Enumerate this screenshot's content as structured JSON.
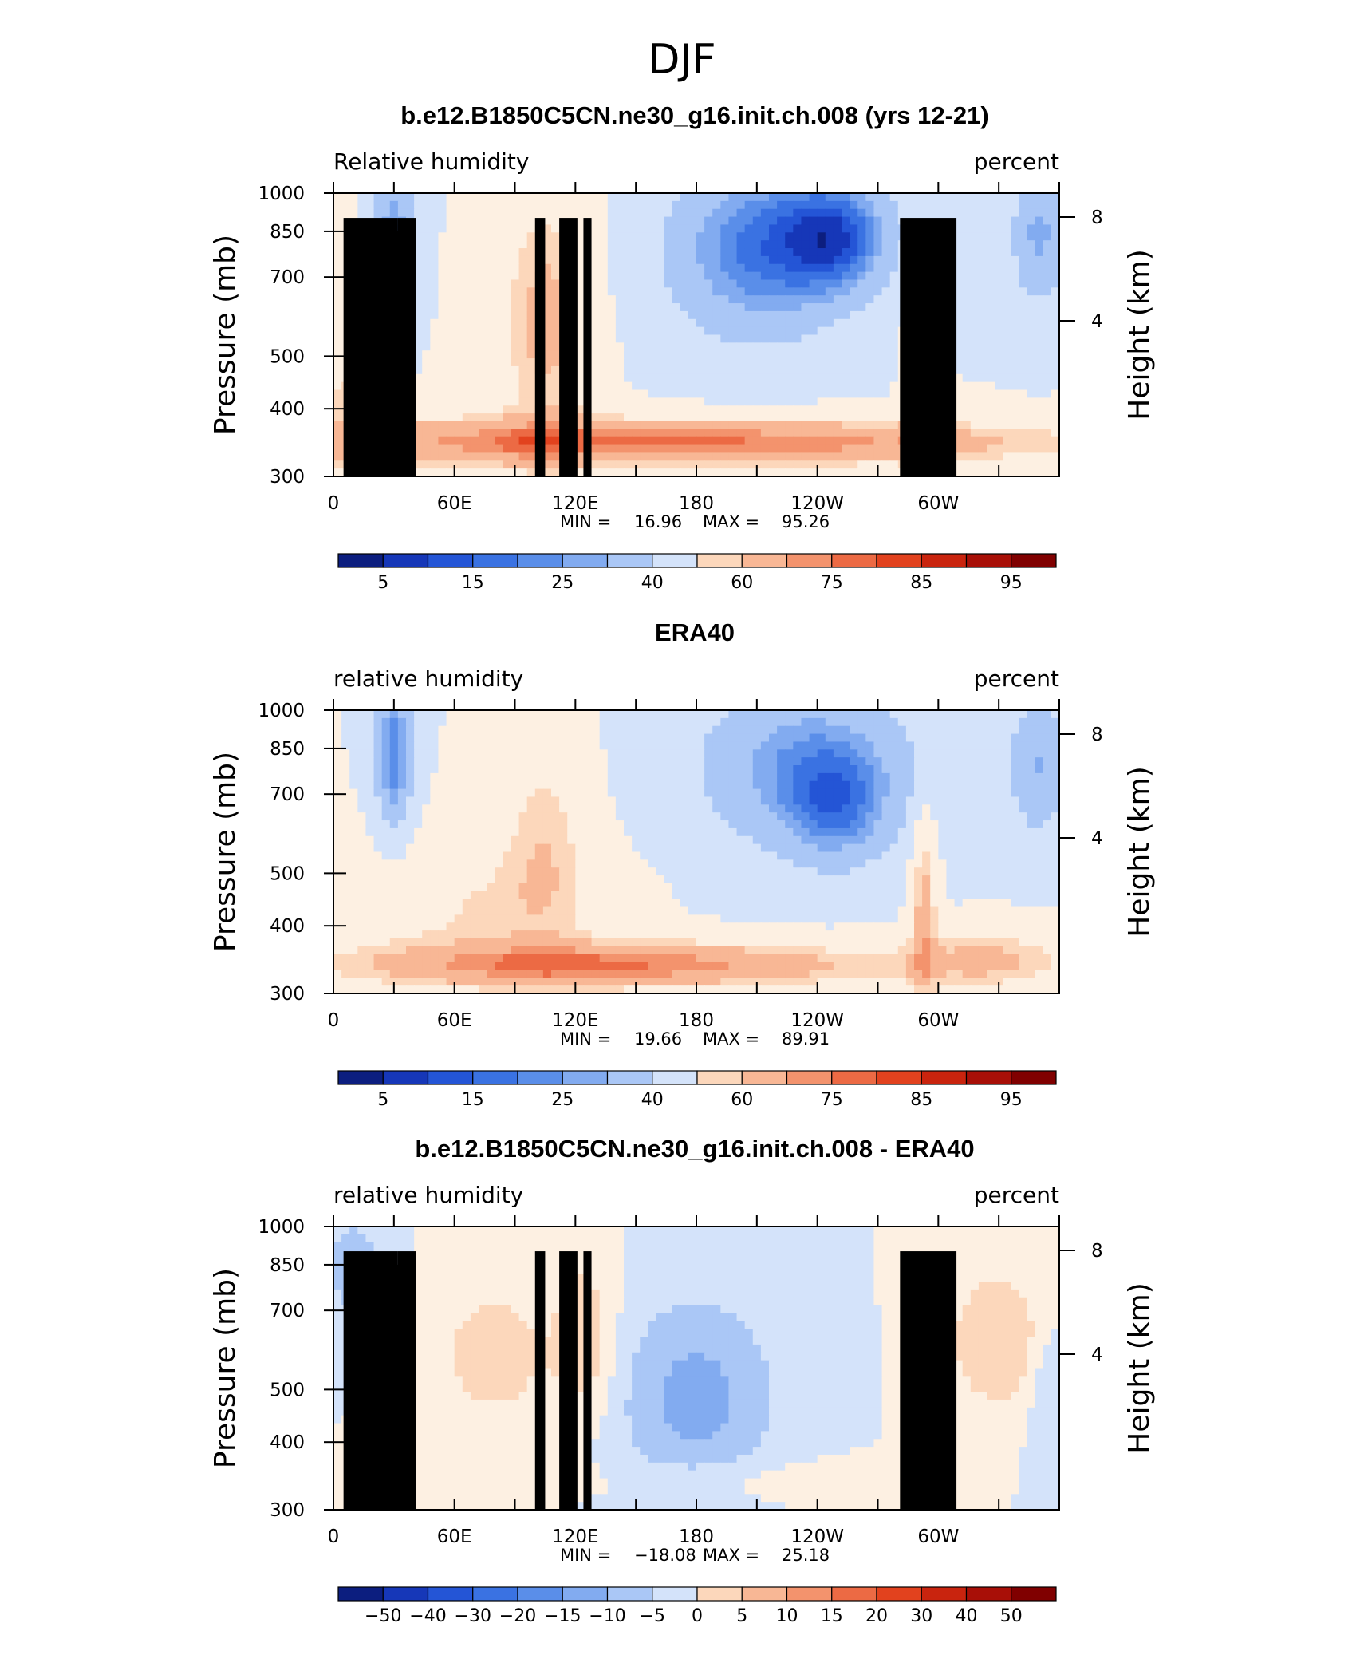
{
  "figure": {
    "title": "DJF"
  },
  "colors": {
    "diverging_palette": [
      "#0c1e7f",
      "#1637b8",
      "#2455d6",
      "#3a72e2",
      "#5a8ee9",
      "#82abf0",
      "#aac7f6",
      "#d4e3fa",
      "#fdf0e2",
      "#fcd7bb",
      "#f8b795",
      "#f3936d",
      "#ec6a44",
      "#e2421e",
      "#c9240e",
      "#a80f07",
      "#800000"
    ],
    "land_mask": "#000000"
  },
  "chart_data": [
    {
      "type": "heatmap",
      "title": "b.e12.B1850C5CN.ne30_g16.init.ch.008 (yrs 12-21)",
      "variable_label": "Relative humidity",
      "units_label": "percent",
      "ylabel": "Pressure (mb)",
      "y2label": "Height (km)",
      "x_ticks": [
        "0",
        "60E",
        "120E",
        "180",
        "120W",
        "60W"
      ],
      "y_ticks": [
        "300",
        "400",
        "500",
        "700",
        "850",
        "1000"
      ],
      "y2_ticks": [
        "8",
        "4"
      ],
      "ylim": [
        1000,
        300
      ],
      "min_label": "MIN =",
      "min_value": "16.96",
      "max_label": "MAX =",
      "max_value": "95.26",
      "colorbar_ticks": [
        "5",
        "15",
        "25",
        "40",
        "60",
        "75",
        "85",
        "95"
      ],
      "min": 16.96,
      "max": 95.26
    },
    {
      "type": "heatmap",
      "title": "ERA40",
      "variable_label": "relative humidity",
      "units_label": "percent",
      "ylabel": "Pressure (mb)",
      "y2label": "Height (km)",
      "x_ticks": [
        "0",
        "60E",
        "120E",
        "180",
        "120W",
        "60W"
      ],
      "y_ticks": [
        "300",
        "400",
        "500",
        "700",
        "850",
        "1000"
      ],
      "y2_ticks": [
        "8",
        "4"
      ],
      "ylim": [
        1000,
        300
      ],
      "min_label": "MIN =",
      "min_value": "19.66",
      "max_label": "MAX =",
      "max_value": "89.91",
      "colorbar_ticks": [
        "5",
        "15",
        "25",
        "40",
        "60",
        "75",
        "85",
        "95"
      ],
      "min": 19.66,
      "max": 89.91
    },
    {
      "type": "heatmap",
      "title": "b.e12.B1850C5CN.ne30_g16.init.ch.008 - ERA40",
      "variable_label": "relative humidity",
      "units_label": "percent",
      "ylabel": "Pressure (mb)",
      "y2label": "Height (km)",
      "x_ticks": [
        "0",
        "60E",
        "120E",
        "180",
        "120W",
        "60W"
      ],
      "y_ticks": [
        "300",
        "400",
        "500",
        "700",
        "850",
        "1000"
      ],
      "y2_ticks": [
        "8",
        "4"
      ],
      "ylim": [
        1000,
        300
      ],
      "min_label": "MIN =",
      "min_value": "−18.08",
      "max_label": "MAX =",
      "max_value": "25.18",
      "colorbar_ticks": [
        "−50",
        "−40",
        "−30",
        "−20",
        "−15",
        "−10",
        "−5",
        "0",
        "5",
        "10",
        "15",
        "20",
        "30",
        "40",
        "50"
      ],
      "min": -18.08,
      "max": 25.18
    }
  ]
}
